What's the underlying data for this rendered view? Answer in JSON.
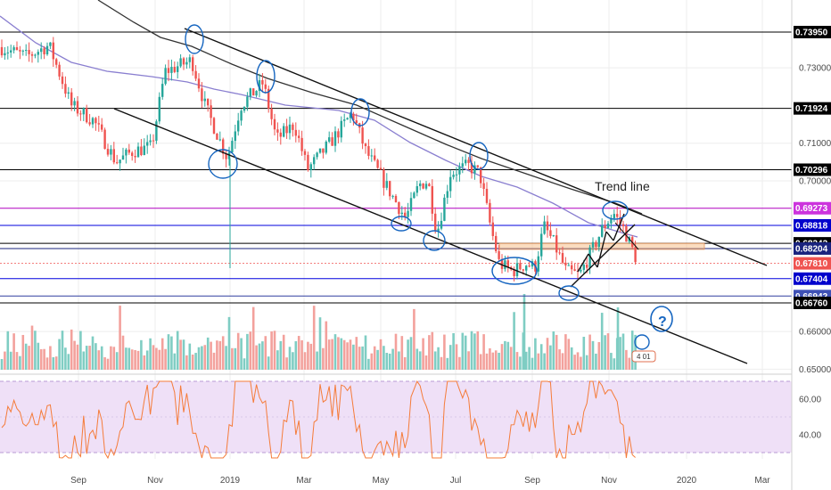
{
  "chart_data": {
    "type": "candlestick",
    "x_axis": {
      "tick_labels": [
        "Sep",
        "Nov",
        "2019",
        "Mar",
        "May",
        "Jul",
        "Sep",
        "Nov",
        "2020",
        "Mar"
      ]
    },
    "price_axis": {
      "ticks": [
        "0.73000",
        "0.71000",
        "0.70000",
        "0.66000",
        "0.65000"
      ],
      "ylim": [
        0.645,
        0.741
      ]
    },
    "rsi_axis": {
      "ticks": [
        "60.00",
        "40.00"
      ],
      "ylim": [
        25,
        75
      ],
      "band": [
        30,
        70
      ]
    },
    "horizontal_levels": [
      {
        "label": "0.73950",
        "value": 0.7395,
        "color": "#000000",
        "bg": "#000000",
        "fg": "#ffffff"
      },
      {
        "label": "0.71924",
        "value": 0.71924,
        "color": "#000000",
        "bg": "#000000",
        "fg": "#ffffff"
      },
      {
        "label": "0.70296",
        "value": 0.70296,
        "color": "#000000",
        "bg": "#000000",
        "fg": "#ffffff"
      },
      {
        "label": "0.69273",
        "value": 0.69273,
        "color": "#b000c0",
        "bg": "#cc33dd",
        "fg": "#ffffff"
      },
      {
        "label": "0.68818",
        "value": 0.68818,
        "color": "#0000dd",
        "bg": "#0000cc",
        "fg": "#ffffff"
      },
      {
        "label": "0.68342",
        "value": 0.68342,
        "color": "#000000",
        "bg": "#000000",
        "fg": "#ffffff"
      },
      {
        "label": "0.68204",
        "value": 0.68204,
        "color": "#1a237e",
        "bg": "#1a237e",
        "fg": "#ffffff"
      },
      {
        "label": "0.67810",
        "value": 0.6781,
        "color": "#ef5350",
        "bg": "#ef5350",
        "fg": "#ffffff"
      },
      {
        "label": "0.67404",
        "value": 0.67404,
        "color": "#0000dd",
        "bg": "#0000cc",
        "fg": "#ffffff"
      },
      {
        "label": "0.66942",
        "value": 0.66942,
        "color": "#303f9f",
        "bg": "#3f51b5",
        "fg": "#ffffff"
      },
      {
        "label": "0.66760",
        "value": 0.6676,
        "color": "#000000",
        "bg": "#000000",
        "fg": "#ffffff"
      }
    ],
    "annotations": {
      "trend_line_label": "Trend line",
      "question_mark": "?",
      "badge": "4 01"
    },
    "colors": {
      "up": "#26a69a",
      "down": "#ef5350",
      "ma_long": "#333333",
      "ma_mid": "#8a7fd0",
      "rsi": "#f57c3a",
      "rsi_band": "#efe0f7",
      "circles": "#1565c0",
      "zone": "#f7c08a"
    },
    "grid": true
  }
}
